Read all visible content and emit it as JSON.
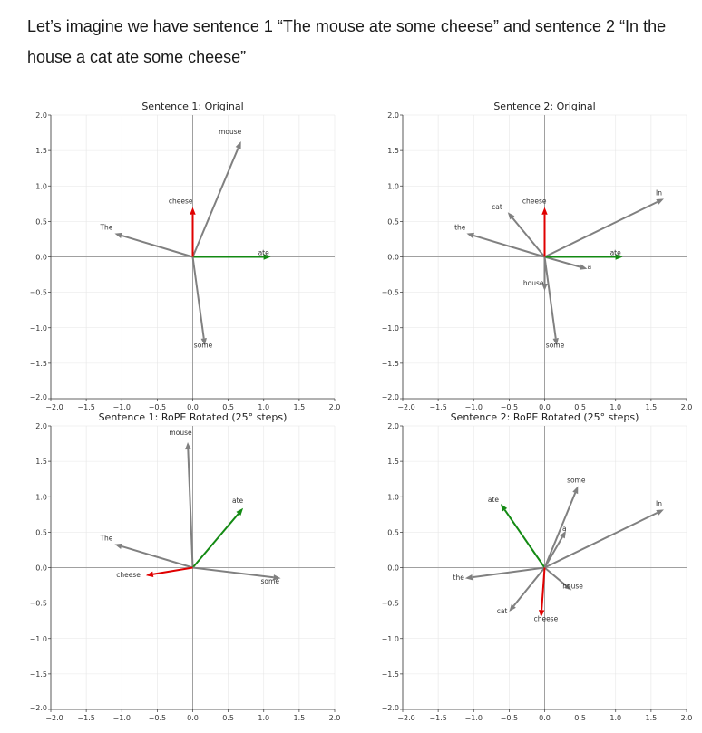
{
  "intro_text": "Let’s imagine we have sentence 1 “The mouse ate some cheese” and sentence 2 “In the house a cat ate some cheese”",
  "colors": {
    "default": "#808080",
    "ate": "#138a13",
    "cheese": "#e00000",
    "grid": "#e6e6e6",
    "axis": "#a0a0a0"
  },
  "chart_data": [
    {
      "type": "quiver",
      "title": "Sentence 1: Original",
      "xlim": [
        -2.0,
        2.0
      ],
      "ylim": [
        -2.0,
        2.0
      ],
      "ticks": [
        -2.0,
        -1.5,
        -1.0,
        -0.5,
        0.0,
        0.5,
        1.0,
        1.5,
        2.0
      ],
      "tick_labels": [
        "−2.0",
        "−1.5",
        "−1.0",
        "−0.5",
        "0.0",
        "0.5",
        "1.0",
        "1.5",
        "2.0"
      ],
      "grid": true,
      "vectors": [
        {
          "word": "The",
          "x": -1.1,
          "y": 0.33,
          "color": "default"
        },
        {
          "word": "mouse",
          "x": 0.68,
          "y": 1.63,
          "color": "default"
        },
        {
          "word": "ate",
          "x": 1.1,
          "y": 0.0,
          "color": "ate"
        },
        {
          "word": "some",
          "x": 0.17,
          "y": -1.25,
          "color": "default"
        },
        {
          "word": "cheese",
          "x": 0.0,
          "y": 0.7,
          "color": "cheese"
        }
      ]
    },
    {
      "type": "quiver",
      "title": "Sentence 2: Original",
      "xlim": [
        -2.0,
        2.0
      ],
      "ylim": [
        -2.0,
        2.0
      ],
      "ticks": [
        -2.0,
        -1.5,
        -1.0,
        -0.5,
        0.0,
        0.5,
        1.0,
        1.5,
        2.0
      ],
      "tick_labels": [
        "−2.0",
        "−1.5",
        "−1.0",
        "−0.5",
        "0.0",
        "0.5",
        "1.0",
        "1.5",
        "2.0"
      ],
      "grid": true,
      "vectors": [
        {
          "word": "In",
          "x": 1.68,
          "y": 0.82,
          "color": "default"
        },
        {
          "word": "the",
          "x": -1.1,
          "y": 0.33,
          "color": "default"
        },
        {
          "word": "house",
          "x": 0.0,
          "y": -0.48,
          "color": "default"
        },
        {
          "word": "a",
          "x": 0.6,
          "y": -0.17,
          "color": "default"
        },
        {
          "word": "cat",
          "x": -0.52,
          "y": 0.63,
          "color": "default"
        },
        {
          "word": "ate",
          "x": 1.1,
          "y": 0.0,
          "color": "ate"
        },
        {
          "word": "some",
          "x": 0.17,
          "y": -1.25,
          "color": "default"
        },
        {
          "word": "cheese",
          "x": 0.0,
          "y": 0.7,
          "color": "cheese"
        }
      ]
    },
    {
      "type": "quiver",
      "title": "Sentence 1: RoPE Rotated (25° steps)",
      "xlim": [
        -2.0,
        2.0
      ],
      "ylim": [
        -2.0,
        2.0
      ],
      "ticks": [
        -2.0,
        -1.5,
        -1.0,
        -0.5,
        0.0,
        0.5,
        1.0,
        1.5,
        2.0
      ],
      "tick_labels": [
        "−2.0",
        "−1.5",
        "−1.0",
        "−0.5",
        "0.0",
        "0.5",
        "1.0",
        "1.5",
        "2.0"
      ],
      "grid": true,
      "vectors": [
        {
          "word": "The",
          "x": -1.1,
          "y": 0.33,
          "color": "default"
        },
        {
          "word": "mouse",
          "x": -0.07,
          "y": 1.77,
          "color": "default"
        },
        {
          "word": "ate",
          "x": 0.71,
          "y": 0.84,
          "color": "ate"
        },
        {
          "word": "some",
          "x": 1.24,
          "y": -0.15,
          "color": "default"
        },
        {
          "word": "cheese",
          "x": -0.66,
          "y": -0.11,
          "color": "cheese"
        }
      ]
    },
    {
      "type": "quiver",
      "title": "Sentence 2: RoPE Rotated (25° steps)",
      "xlim": [
        -2.0,
        2.0
      ],
      "ylim": [
        -2.0,
        2.0
      ],
      "ticks": [
        -2.0,
        -1.5,
        -1.0,
        -0.5,
        0.0,
        0.5,
        1.0,
        1.5,
        2.0
      ],
      "tick_labels": [
        "−2.0",
        "−1.5",
        "−1.0",
        "−0.5",
        "0.0",
        "0.5",
        "1.0",
        "1.5",
        "2.0"
      ],
      "grid": true,
      "vectors": [
        {
          "word": "In",
          "x": 1.68,
          "y": 0.82,
          "color": "default"
        },
        {
          "word": "the",
          "x": -1.12,
          "y": -0.15,
          "color": "default"
        },
        {
          "word": "house",
          "x": 0.38,
          "y": -0.32,
          "color": "default"
        },
        {
          "word": "a",
          "x": 0.3,
          "y": 0.52,
          "color": "default"
        },
        {
          "word": "cat",
          "x": -0.5,
          "y": -0.62,
          "color": "default"
        },
        {
          "word": "ate",
          "x": -0.62,
          "y": 0.9,
          "color": "ate"
        },
        {
          "word": "some",
          "x": 0.47,
          "y": 1.15,
          "color": "default"
        },
        {
          "word": "cheese",
          "x": -0.05,
          "y": -0.7,
          "color": "cheese"
        }
      ]
    }
  ]
}
